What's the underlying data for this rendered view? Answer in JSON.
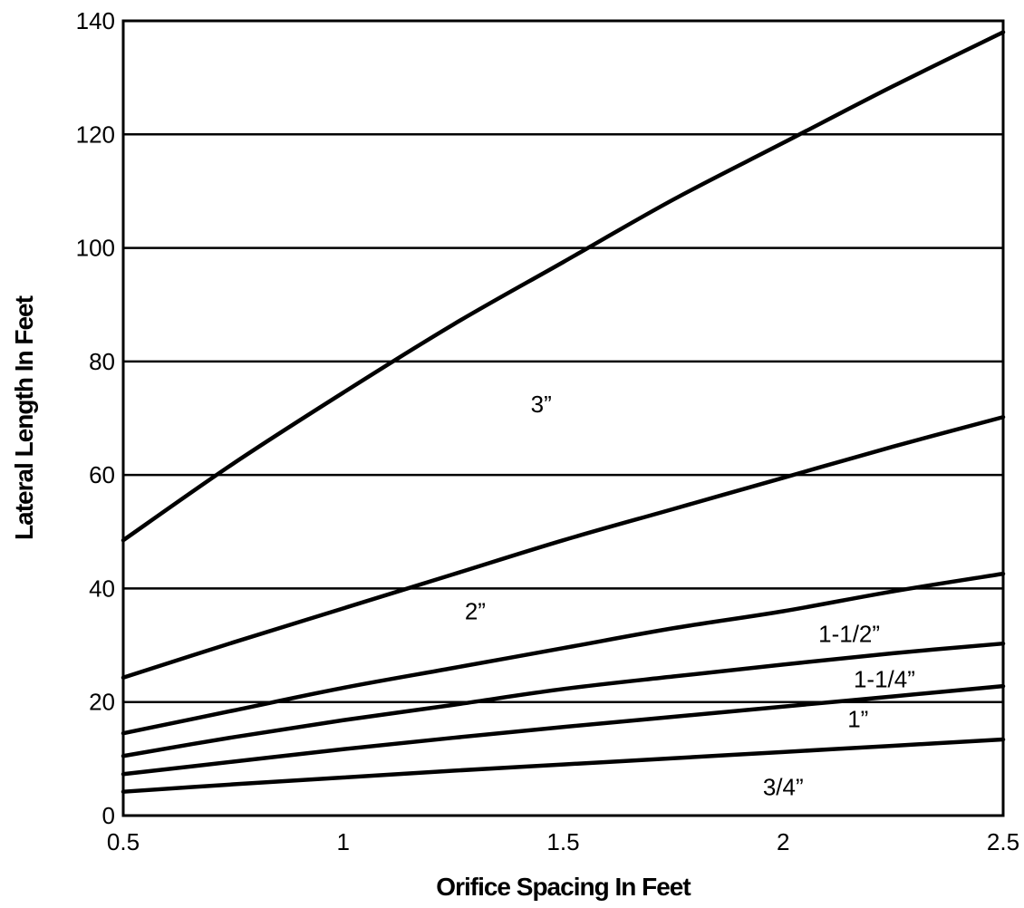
{
  "chart_data": {
    "type": "line",
    "title": "",
    "xlabel": "Orifice Spacing In Feet",
    "ylabel": "Lateral Length In Feet",
    "xlim": [
      0.5,
      2.5
    ],
    "ylim": [
      0,
      140
    ],
    "x_ticks": [
      "0.5",
      "1",
      "1.5",
      "2",
      "2.5"
    ],
    "y_ticks": [
      "0",
      "20",
      "40",
      "60",
      "80",
      "100",
      "120",
      "140"
    ],
    "grid": "horizontal",
    "legend": "none",
    "x": [
      0.5,
      0.75,
      1.0,
      1.25,
      1.5,
      1.75,
      2.0,
      2.25,
      2.5
    ],
    "series": [
      {
        "name": "3”",
        "values": [
          48.5,
          62,
          74.5,
          86.5,
          97.5,
          108.5,
          118.5,
          128.5,
          138
        ],
        "label_at": [
          1.45,
          72.5
        ]
      },
      {
        "name": "2”",
        "values": [
          24.3,
          30.5,
          36.5,
          42.5,
          48.5,
          54,
          59.5,
          65,
          70.2
        ],
        "label_at": [
          1.3,
          36
        ]
      },
      {
        "name": "1-1/2”",
        "values": [
          14.5,
          18.5,
          22.5,
          26,
          29.5,
          33,
          36,
          39.5,
          42.6
        ],
        "label_at": [
          2.15,
          32
        ]
      },
      {
        "name": "1-1/4”",
        "values": [
          10.5,
          13.8,
          16.8,
          19.5,
          22.3,
          24.5,
          26.6,
          28.6,
          30.3
        ],
        "label_at": [
          2.23,
          24
        ]
      },
      {
        "name": "1”",
        "values": [
          7.3,
          9.5,
          11.7,
          13.7,
          15.6,
          17.4,
          19.2,
          21,
          22.8
        ],
        "label_at": [
          2.17,
          17
        ]
      },
      {
        "name": "3/4”",
        "values": [
          4.2,
          5.5,
          6.7,
          7.9,
          9.0,
          10.1,
          11.2,
          12.3,
          13.4
        ],
        "label_at": [
          2.0,
          5
        ]
      }
    ]
  }
}
